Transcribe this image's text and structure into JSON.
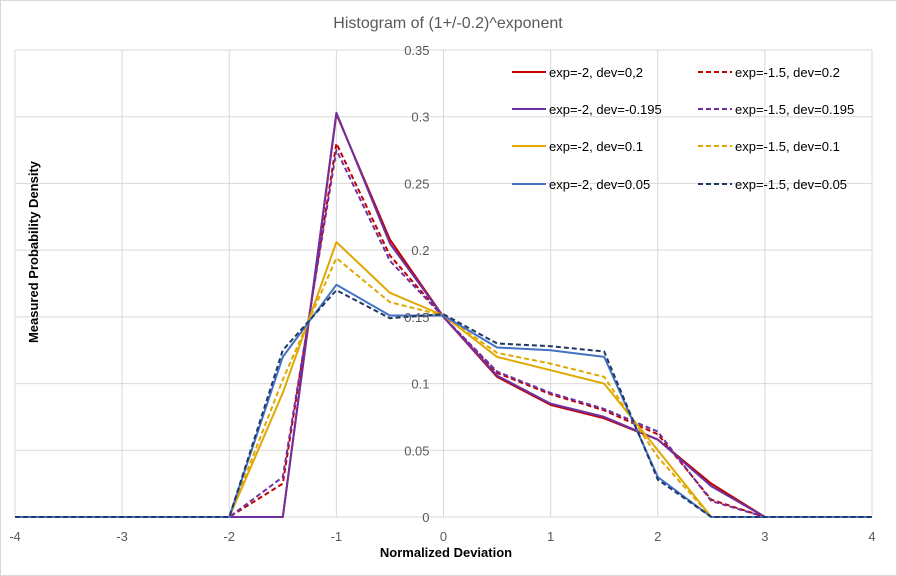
{
  "chart_data": {
    "type": "line",
    "title": "Histogram of (1+/-0.2)^exponent",
    "xlabel": "Normalized Deviation",
    "ylabel": "Measured Probability Density",
    "xlim": [
      -4,
      4
    ],
    "ylim": [
      0,
      0.35
    ],
    "x_ticks": [
      -4,
      -3,
      -2,
      -1,
      0,
      1,
      2,
      3,
      4
    ],
    "x_tick_labels": [
      "-4",
      "-3",
      "-2",
      "-1",
      "0",
      "1",
      "2",
      "3",
      "4"
    ],
    "y_ticks": [
      0,
      0.05,
      0.1,
      0.15,
      0.2,
      0.25,
      0.3,
      0.35
    ],
    "y_tick_labels": [
      "0",
      "0.05",
      "0.1",
      "0.15",
      "0.2",
      "0.25",
      "0.3",
      "0.35"
    ],
    "grid": true,
    "legend_position": "top-right",
    "series": [
      {
        "name": "exp=-2, dev=0,2",
        "color": "#c00000",
        "dash": false,
        "x": [
          -4,
          -2,
          -1.5,
          -1,
          -0.5,
          0,
          0.5,
          1,
          1.5,
          2,
          2.5,
          3,
          4
        ],
        "y": [
          0,
          0,
          0,
          0.302,
          0.208,
          0.15,
          0.105,
          0.084,
          0.074,
          0.058,
          0.025,
          0,
          0
        ]
      },
      {
        "name": "exp=-1.5, dev=0.2",
        "color": "#c00000",
        "dash": true,
        "x": [
          -4,
          -2,
          -1.5,
          -1,
          -0.5,
          0,
          0.5,
          1,
          1.5,
          2,
          2.5,
          3,
          4
        ],
        "y": [
          0,
          0,
          0.025,
          0.28,
          0.196,
          0.15,
          0.108,
          0.092,
          0.08,
          0.062,
          0.013,
          0,
          0
        ]
      },
      {
        "name": "exp=-2, dev=-0.195",
        "color": "#7030a0",
        "dash": false,
        "x": [
          -4,
          -2,
          -1.5,
          -1,
          -0.5,
          0,
          0.5,
          1,
          1.5,
          2,
          2.5,
          3,
          4
        ],
        "y": [
          0,
          0,
          0,
          0.303,
          0.205,
          0.15,
          0.106,
          0.085,
          0.075,
          0.058,
          0.023,
          0,
          0
        ]
      },
      {
        "name": "exp=-1.5, dev=0.195",
        "color": "#7030a0",
        "dash": true,
        "x": [
          -4,
          -2,
          -1.5,
          -1,
          -0.5,
          0,
          0.5,
          1,
          1.5,
          2,
          2.5,
          3,
          4
        ],
        "y": [
          0,
          0,
          0.03,
          0.275,
          0.192,
          0.15,
          0.109,
          0.093,
          0.081,
          0.064,
          0.012,
          0,
          0
        ]
      },
      {
        "name": "exp=-2, dev=0.1",
        "color": "#e0a800",
        "dash": false,
        "x": [
          -4,
          -2,
          -1.5,
          -1,
          -0.5,
          0,
          0.5,
          1,
          1.5,
          2,
          2.5,
          4
        ],
        "y": [
          0,
          0,
          0.093,
          0.206,
          0.168,
          0.151,
          0.12,
          0.11,
          0.1,
          0.05,
          0,
          0
        ]
      },
      {
        "name": "exp=-1.5, dev=0.1",
        "color": "#e0a800",
        "dash": true,
        "x": [
          -4,
          -2,
          -1.5,
          -1,
          -0.5,
          0,
          0.5,
          1,
          1.5,
          2,
          2.5,
          4
        ],
        "y": [
          0,
          0,
          0.103,
          0.194,
          0.161,
          0.151,
          0.123,
          0.115,
          0.105,
          0.045,
          0,
          0
        ]
      },
      {
        "name": "exp=-2, dev=0.05",
        "color": "#4472c4",
        "dash": false,
        "x": [
          -4,
          -2,
          -1.5,
          -1,
          -0.5,
          0,
          0.5,
          1,
          1.5,
          2,
          2.5,
          4
        ],
        "y": [
          0,
          0,
          0.12,
          0.174,
          0.151,
          0.151,
          0.127,
          0.125,
          0.12,
          0.03,
          0,
          0
        ]
      },
      {
        "name": "exp=-1.5, dev=0.05",
        "color": "#203864",
        "dash": true,
        "x": [
          -4,
          -2,
          -1.5,
          -1,
          -0.5,
          0,
          0.5,
          1,
          1.5,
          2,
          2.5,
          4
        ],
        "y": [
          0,
          0,
          0.125,
          0.17,
          0.149,
          0.152,
          0.13,
          0.128,
          0.124,
          0.028,
          0,
          0
        ]
      }
    ]
  }
}
